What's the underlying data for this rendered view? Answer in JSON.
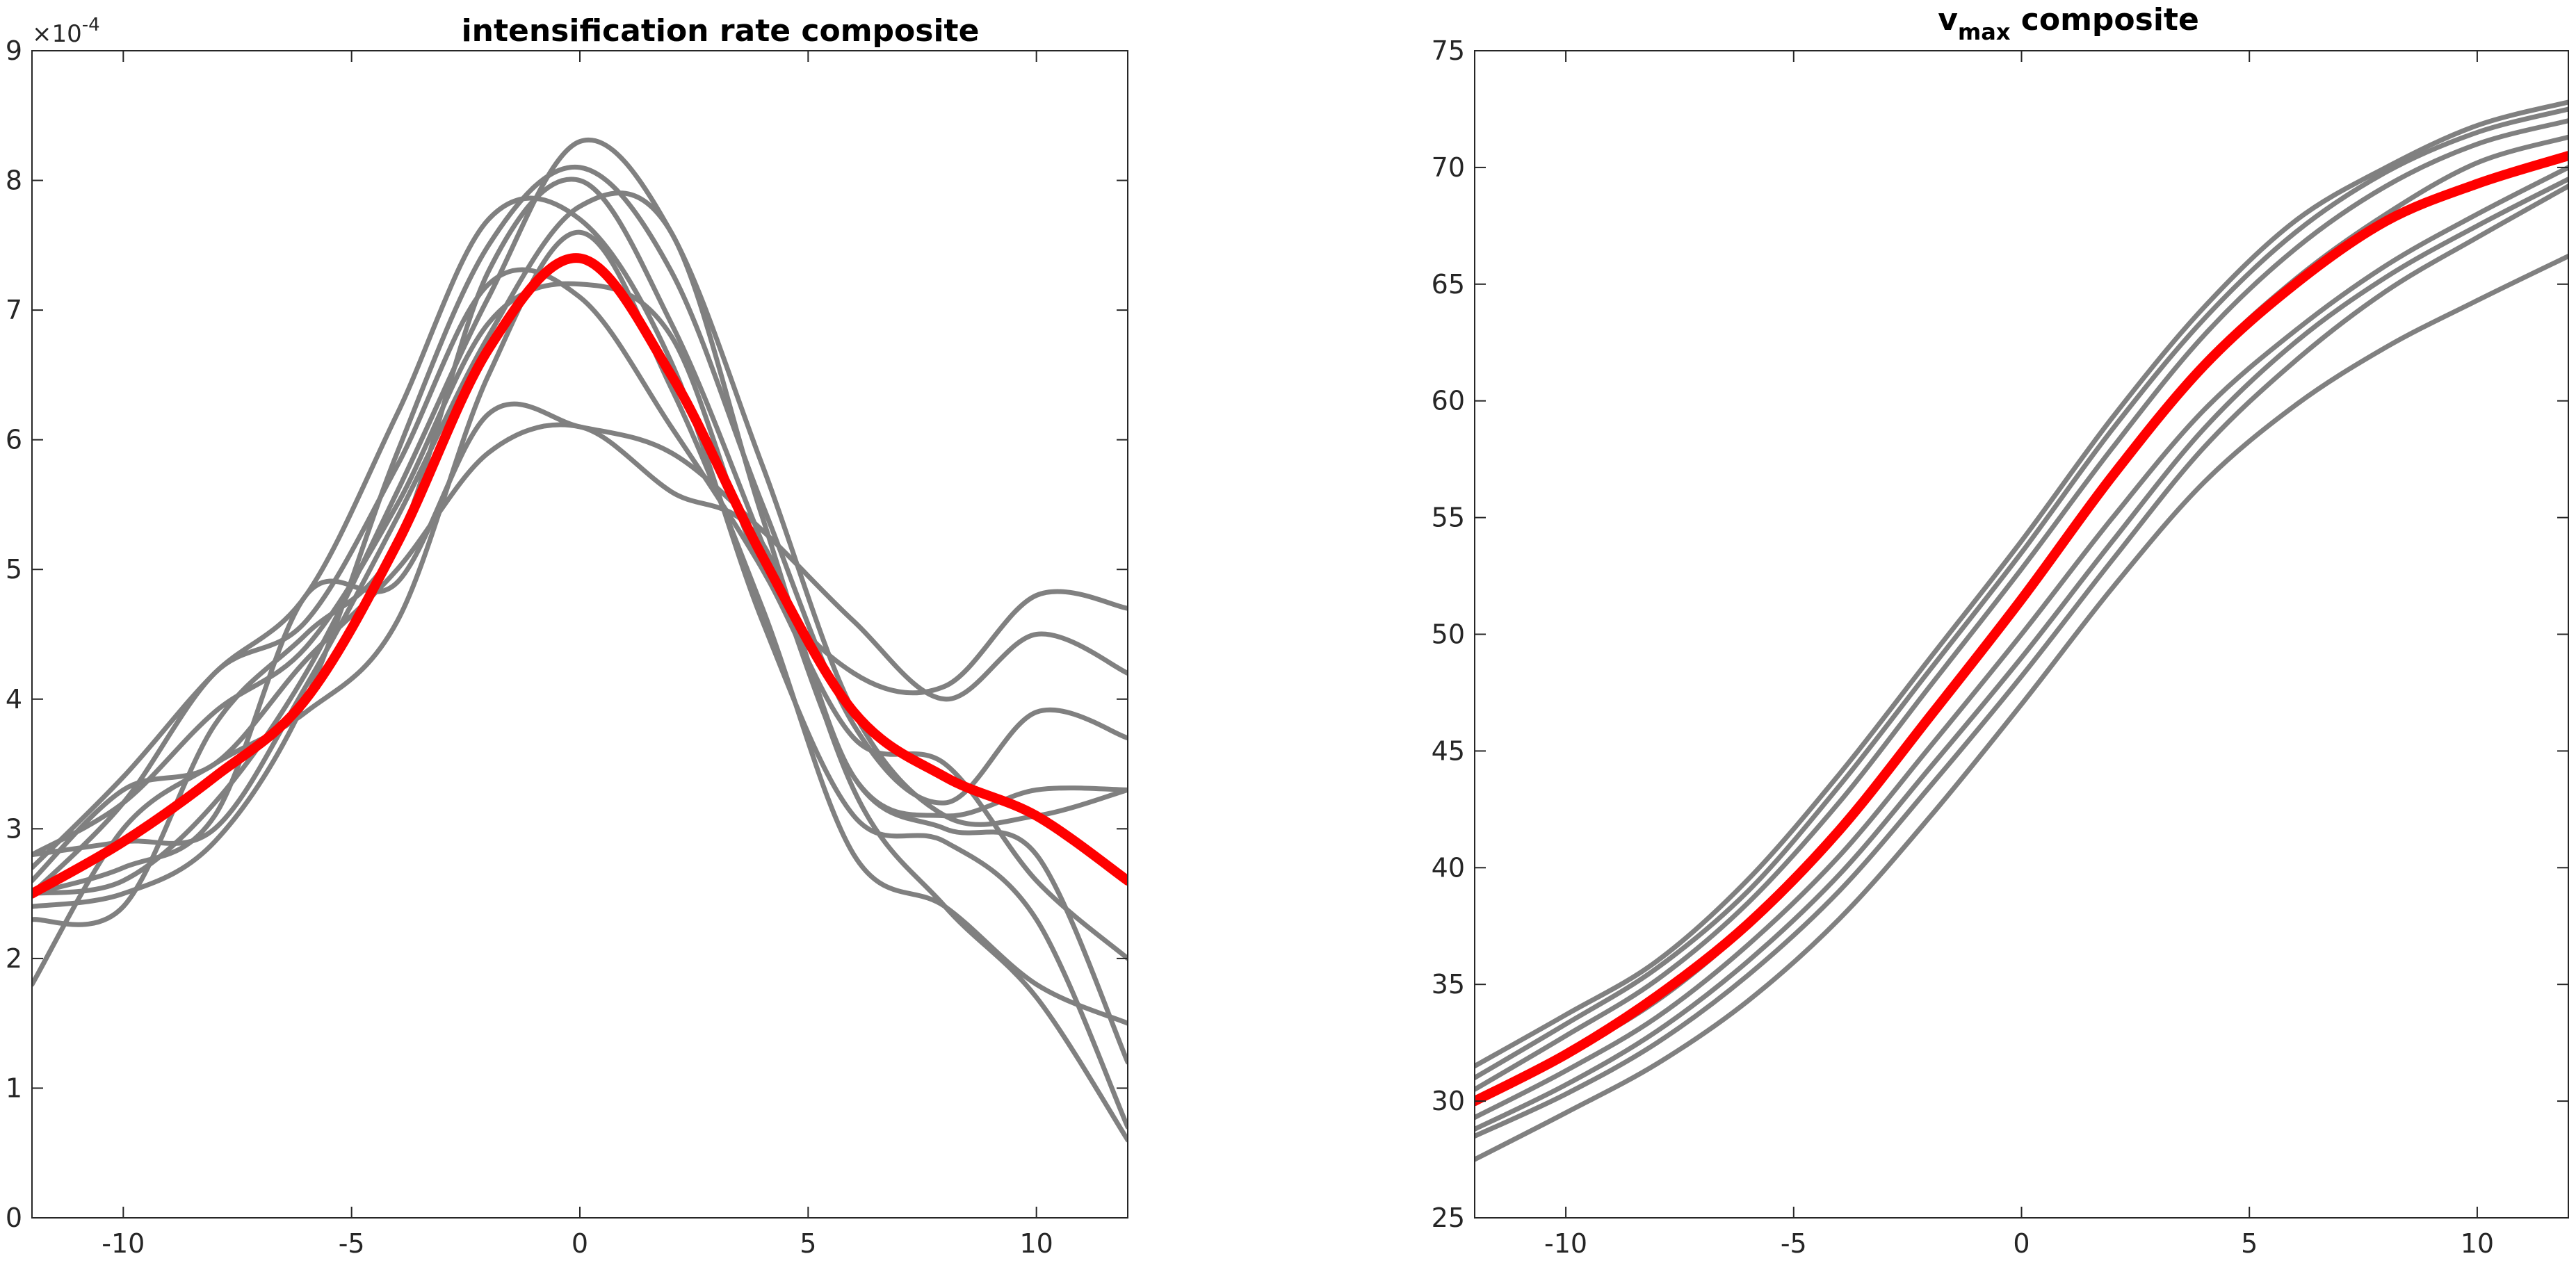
{
  "chart_data": [
    {
      "type": "line",
      "title": "intensification rate composite",
      "xlabel": "",
      "ylabel": "",
      "xlim": [
        -12,
        12
      ],
      "ylim": [
        0,
        9
      ],
      "y_multiplier": {
        "base": "×10",
        "exponent": "-4"
      },
      "xticks": [
        -10,
        -5,
        0,
        5,
        10
      ],
      "xtick_labels": [
        "-10",
        "-5",
        "0",
        "5",
        "10"
      ],
      "yticks": [
        0,
        1,
        2,
        3,
        4,
        5,
        6,
        7,
        8,
        9
      ],
      "ytick_labels": [
        "0",
        "1",
        "2",
        "3",
        "4",
        "5",
        "6",
        "7",
        "8",
        "9"
      ],
      "grid": false,
      "x": [
        -12,
        -10,
        -8,
        -6,
        -4,
        -2,
        0,
        2,
        4,
        6,
        8,
        10,
        12
      ],
      "series": [
        {
          "color": "#808080",
          "role": "member",
          "values": [
            2.5,
            2.6,
            3.2,
            4.2,
            5.6,
            7.1,
            8.3,
            7.6,
            5.8,
            3.9,
            3.1,
            3.1,
            3.3
          ]
        },
        {
          "color": "#808080",
          "role": "member",
          "values": [
            2.4,
            2.5,
            2.9,
            4.0,
            5.9,
            7.5,
            8.1,
            7.3,
            5.5,
            3.8,
            3.2,
            3.9,
            3.7
          ]
        },
        {
          "color": "#808080",
          "role": "member",
          "values": [
            2.7,
            3.4,
            4.2,
            4.8,
            6.2,
            7.7,
            7.7,
            6.6,
            4.6,
            3.1,
            2.9,
            2.3,
            0.7
          ]
        },
        {
          "color": "#808080",
          "role": "member",
          "values": [
            2.3,
            2.4,
            3.8,
            4.5,
            5.2,
            7.3,
            8.0,
            6.9,
            5.2,
            3.4,
            3.0,
            2.8,
            1.2
          ]
        },
        {
          "color": "#808080",
          "role": "member",
          "values": [
            2.8,
            3.2,
            3.9,
            4.4,
            5.5,
            6.9,
            7.2,
            6.8,
            5.0,
            4.2,
            4.1,
            4.8,
            4.7
          ]
        },
        {
          "color": "#808080",
          "role": "member",
          "values": [
            2.5,
            2.7,
            3.1,
            4.8,
            4.9,
            6.2,
            6.1,
            5.9,
            5.3,
            4.6,
            4.0,
            4.5,
            4.2
          ]
        },
        {
          "color": "#808080",
          "role": "member",
          "values": [
            2.6,
            3.3,
            3.5,
            4.3,
            5.0,
            5.9,
            6.1,
            5.6,
            5.2,
            3.4,
            3.1,
            3.3,
            3.3
          ]
        },
        {
          "color": "#808080",
          "role": "member",
          "values": [
            2.8,
            2.9,
            3.0,
            4.1,
            5.4,
            6.8,
            7.8,
            7.6,
            5.4,
            3.3,
            2.4,
            1.7,
            0.6
          ]
        },
        {
          "color": "#808080",
          "role": "member",
          "values": [
            1.8,
            3.0,
            3.5,
            3.9,
            4.6,
            6.5,
            7.6,
            6.4,
            4.7,
            2.8,
            2.4,
            1.8,
            1.5
          ]
        },
        {
          "color": "#808080",
          "role": "member",
          "values": [
            2.5,
            3.2,
            4.2,
            4.6,
            5.8,
            7.2,
            7.1,
            6.1,
            5.0,
            3.7,
            3.5,
            2.6,
            2.0
          ]
        },
        {
          "color": "#ff0000",
          "role": "composite",
          "values": [
            2.5,
            2.9,
            3.4,
            4.0,
            5.2,
            6.7,
            7.4,
            6.5,
            5.1,
            3.9,
            3.4,
            3.1,
            2.6
          ]
        }
      ]
    },
    {
      "type": "line",
      "title": "v",
      "title_subscript": "max",
      "title_suffix": " composite",
      "xlabel": "",
      "ylabel": "",
      "xlim": [
        -12,
        12
      ],
      "ylim": [
        25,
        75
      ],
      "xticks": [
        -10,
        -5,
        0,
        5,
        10
      ],
      "xtick_labels": [
        "-10",
        "-5",
        "0",
        "5",
        "10"
      ],
      "yticks": [
        25,
        30,
        35,
        40,
        45,
        50,
        55,
        60,
        65,
        70,
        75
      ],
      "ytick_labels": [
        "25",
        "30",
        "35",
        "40",
        "45",
        "50",
        "55",
        "60",
        "65",
        "70",
        "75"
      ],
      "grid": false,
      "x": [
        -12,
        -10,
        -8,
        -6,
        -4,
        -2,
        0,
        2,
        4,
        6,
        8,
        10,
        12
      ],
      "series": [
        {
          "color": "#808080",
          "role": "member",
          "values": [
            31.5,
            33.7,
            36.0,
            39.5,
            44.0,
            49.0,
            54.0,
            59.3,
            64.0,
            67.7,
            70.0,
            71.8,
            72.8
          ]
        },
        {
          "color": "#808080",
          "role": "member",
          "values": [
            31.0,
            33.3,
            35.7,
            39.0,
            43.5,
            48.5,
            53.5,
            58.8,
            63.5,
            67.2,
            69.8,
            71.5,
            72.5
          ]
        },
        {
          "color": "#808080",
          "role": "member",
          "values": [
            30.5,
            32.8,
            35.2,
            38.5,
            42.8,
            47.8,
            52.8,
            58.0,
            62.8,
            66.5,
            69.2,
            71.0,
            72.0
          ]
        },
        {
          "color": "#808080",
          "role": "member",
          "values": [
            30.0,
            32.0,
            34.3,
            37.5,
            41.5,
            46.5,
            51.5,
            56.8,
            61.6,
            65.2,
            68.0,
            70.2,
            71.3
          ]
        },
        {
          "color": "#808080",
          "role": "member",
          "values": [
            29.3,
            31.3,
            33.6,
            36.7,
            40.5,
            45.2,
            50.0,
            55.0,
            59.6,
            63.0,
            65.8,
            68.0,
            70.0
          ]
        },
        {
          "color": "#808080",
          "role": "member",
          "values": [
            28.8,
            30.7,
            33.0,
            36.0,
            39.7,
            44.3,
            49.0,
            54.0,
            58.8,
            62.5,
            65.3,
            67.5,
            69.5
          ]
        },
        {
          "color": "#808080",
          "role": "member",
          "values": [
            28.5,
            30.3,
            32.5,
            35.4,
            39.0,
            43.5,
            48.2,
            53.2,
            58.0,
            61.7,
            64.7,
            67.0,
            69.2
          ]
        },
        {
          "color": "#808080",
          "role": "member",
          "values": [
            27.5,
            29.5,
            31.6,
            34.3,
            37.8,
            42.2,
            47.0,
            52.0,
            56.5,
            59.8,
            62.3,
            64.3,
            66.2
          ]
        },
        {
          "color": "#ff0000",
          "role": "composite",
          "values": [
            30.0,
            32.0,
            34.5,
            37.6,
            41.6,
            46.5,
            51.5,
            56.8,
            61.5,
            65.0,
            67.7,
            69.3,
            70.5
          ]
        }
      ]
    }
  ]
}
